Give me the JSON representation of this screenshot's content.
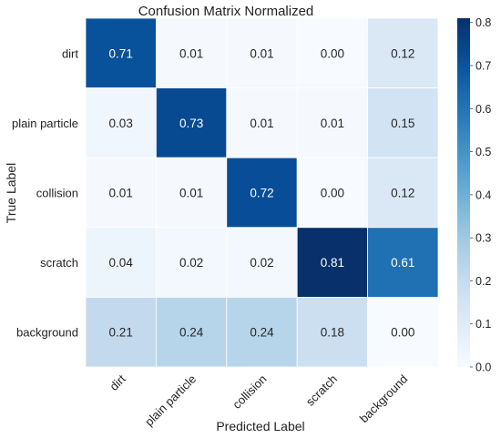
{
  "chart_data": {
    "type": "heatmap",
    "title": "Confusion Matrix Normalized",
    "xlabel": "Predicted Label",
    "ylabel": "True Label",
    "x_categories": [
      "dirt",
      "plain particle",
      "collision",
      "scratch",
      "background"
    ],
    "y_categories": [
      "dirt",
      "plain particle",
      "collision",
      "scratch",
      "background"
    ],
    "values": [
      [
        0.71,
        0.01,
        0.01,
        0.0,
        0.12
      ],
      [
        0.03,
        0.73,
        0.01,
        0.01,
        0.15
      ],
      [
        0.01,
        0.01,
        0.72,
        0.0,
        0.12
      ],
      [
        0.04,
        0.02,
        0.02,
        0.81,
        0.61
      ],
      [
        0.21,
        0.24,
        0.24,
        0.18,
        0.0
      ]
    ],
    "cell_labels": [
      [
        "0.71",
        "0.01",
        "0.01",
        "0.00",
        "0.12"
      ],
      [
        "0.03",
        "0.73",
        "0.01",
        "0.01",
        "0.15"
      ],
      [
        "0.01",
        "0.01",
        "0.72",
        "0.00",
        "0.12"
      ],
      [
        "0.04",
        "0.02",
        "0.02",
        "0.81",
        "0.61"
      ],
      [
        "0.21",
        "0.24",
        "0.24",
        "0.18",
        "0.00"
      ]
    ],
    "colorbar": {
      "colormap": "Blues",
      "range": [
        0.0,
        0.81
      ],
      "ticks": [
        0.0,
        0.1,
        0.2,
        0.3,
        0.4,
        0.5,
        0.6,
        0.7,
        0.8
      ],
      "tick_labels": [
        "0.0",
        "0.1",
        "0.2",
        "0.3",
        "0.4",
        "0.5",
        "0.6",
        "0.7",
        "0.8"
      ]
    },
    "grid": false
  }
}
